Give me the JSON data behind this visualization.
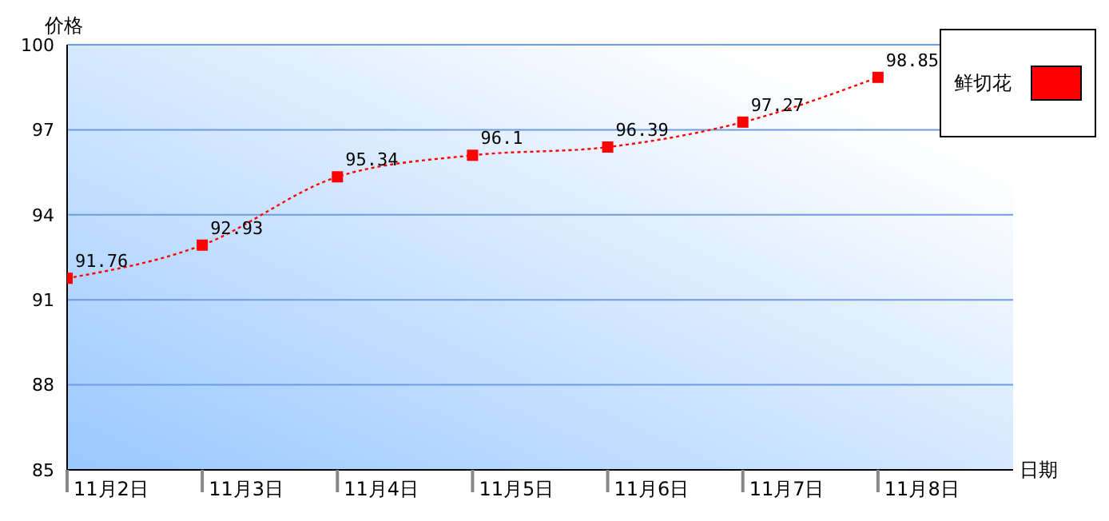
{
  "chart_data": {
    "type": "line",
    "xlabel": "日期",
    "ylabel": "价格",
    "categories": [
      "11月2日",
      "11月3日",
      "11月4日",
      "11月5日",
      "11月6日",
      "11月7日",
      "11月8日"
    ],
    "series": [
      {
        "name": "鲜切花",
        "color": "#ff0000",
        "values": [
          91.76,
          92.93,
          95.34,
          96.1,
          96.39,
          97.27,
          98.85
        ]
      }
    ],
    "ylim": [
      85,
      100
    ],
    "yticks": [
      85,
      88,
      91,
      94,
      97,
      100
    ],
    "grid": "y",
    "legend": "top right",
    "marker": "square",
    "line_style": "dotted",
    "data_labels": true
  }
}
